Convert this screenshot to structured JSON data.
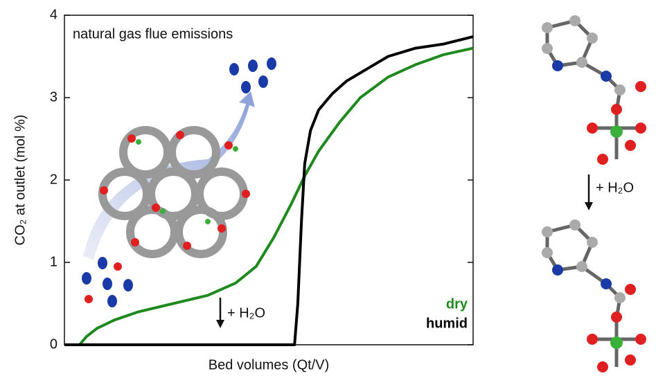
{
  "chart_data": {
    "type": "line",
    "title": "natural gas flue emissions",
    "x_label": "Bed volumes (Qt/V)",
    "y_label": "CO₂ at outlet (mol %)",
    "xlim": [
      0,
      100
    ],
    "ylim": [
      0,
      4
    ],
    "yticks": [
      0,
      1,
      2,
      3,
      4
    ],
    "annotations": [
      "+ H₂O",
      "+ H₂O"
    ],
    "series": [
      {
        "name": "dry",
        "color": "#1e8a1e",
        "x": [
          0,
          3.7,
          5.4,
          8,
          12.2,
          18.1,
          26.6,
          35.1,
          41.9,
          46.9,
          51.2,
          55.4,
          58.8,
          62.2,
          67.3,
          72.4,
          79.2,
          85.9,
          92.7,
          100
        ],
        "values": [
          0,
          0,
          0.1,
          0.2,
          0.3,
          0.4,
          0.5,
          0.6,
          0.75,
          0.95,
          1.3,
          1.7,
          2.05,
          2.35,
          2.7,
          3.0,
          3.25,
          3.4,
          3.52,
          3.6
        ]
      },
      {
        "name": "humid",
        "color": "#000000",
        "x": [
          0,
          56.3,
          57.1,
          58,
          58.8,
          60.2,
          62.2,
          65.6,
          69,
          74.1,
          79.2,
          85.9,
          92.7,
          100
        ],
        "values": [
          0,
          0,
          0.5,
          1.5,
          2.2,
          2.6,
          2.85,
          3.05,
          3.2,
          3.35,
          3.5,
          3.6,
          3.65,
          3.74
        ]
      }
    ]
  }
}
